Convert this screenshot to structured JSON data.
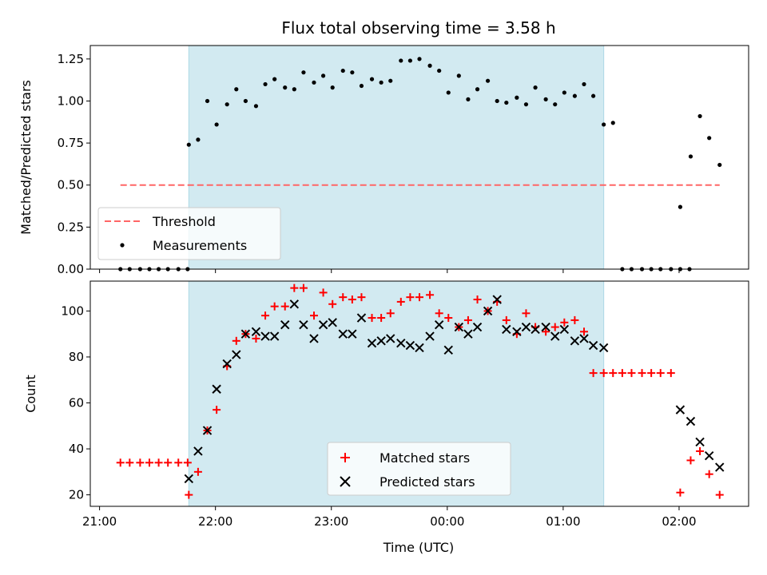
{
  "chart_data": {
    "type": "scatter",
    "title": "Flux total observing time = 3.58 h",
    "xlabel": "Time (UTC)",
    "x_tick_labels": [
      "21:00",
      "22:00",
      "23:00",
      "00:00",
      "01:00",
      "02:00"
    ],
    "x_tick_hours": [
      21.0,
      22.0,
      23.0,
      24.0,
      25.0,
      26.0
    ],
    "xlim_hours": [
      20.92,
      26.6
    ],
    "observing_window_hours": [
      21.77,
      25.35
    ],
    "observing_window_color": "#add8e6",
    "top_panel": {
      "ylabel": "Matched/Predicted stars",
      "ylim": [
        0.0,
        1.33
      ],
      "y_ticks": [
        "0.00",
        "0.25",
        "0.50",
        "0.75",
        "1.00",
        "1.25"
      ],
      "legend_position": "lower-left",
      "threshold": {
        "name": "Threshold",
        "value": 0.5,
        "x_range_hours": [
          21.18,
          26.35
        ],
        "color": "#ff6666"
      },
      "measurements": {
        "name": "Measurements",
        "color": "#000000",
        "points": [
          [
            21.18,
            0.0
          ],
          [
            21.26,
            0.0
          ],
          [
            21.35,
            0.0
          ],
          [
            21.43,
            0.0
          ],
          [
            21.51,
            0.0
          ],
          [
            21.59,
            0.0
          ],
          [
            21.68,
            0.0
          ],
          [
            21.76,
            0.0
          ],
          [
            21.77,
            0.74
          ],
          [
            21.85,
            0.77
          ],
          [
            21.93,
            1.0
          ],
          [
            22.01,
            0.86
          ],
          [
            22.1,
            0.98
          ],
          [
            22.18,
            1.07
          ],
          [
            22.26,
            1.0
          ],
          [
            22.35,
            0.97
          ],
          [
            22.43,
            1.1
          ],
          [
            22.51,
            1.13
          ],
          [
            22.6,
            1.08
          ],
          [
            22.68,
            1.07
          ],
          [
            22.76,
            1.17
          ],
          [
            22.85,
            1.11
          ],
          [
            22.93,
            1.15
          ],
          [
            23.01,
            1.08
          ],
          [
            23.1,
            1.18
          ],
          [
            23.18,
            1.17
          ],
          [
            23.26,
            1.09
          ],
          [
            23.35,
            1.13
          ],
          [
            23.43,
            1.11
          ],
          [
            23.51,
            1.12
          ],
          [
            23.6,
            1.24
          ],
          [
            23.68,
            1.24
          ],
          [
            23.76,
            1.25
          ],
          [
            23.85,
            1.21
          ],
          [
            23.93,
            1.18
          ],
          [
            24.01,
            1.05
          ],
          [
            24.1,
            1.15
          ],
          [
            24.18,
            1.01
          ],
          [
            24.26,
            1.07
          ],
          [
            24.35,
            1.12
          ],
          [
            24.43,
            1.0
          ],
          [
            24.51,
            0.99
          ],
          [
            24.6,
            1.02
          ],
          [
            24.68,
            0.98
          ],
          [
            24.76,
            1.08
          ],
          [
            24.85,
            1.01
          ],
          [
            24.93,
            0.98
          ],
          [
            25.01,
            1.05
          ],
          [
            25.1,
            1.03
          ],
          [
            25.18,
            1.1
          ],
          [
            25.26,
            1.03
          ],
          [
            25.35,
            0.86
          ],
          [
            25.43,
            0.87
          ],
          [
            25.51,
            0.0
          ],
          [
            25.59,
            0.0
          ],
          [
            25.68,
            0.0
          ],
          [
            25.76,
            0.0
          ],
          [
            25.84,
            0.0
          ],
          [
            25.93,
            0.0
          ],
          [
            26.01,
            0.0
          ],
          [
            26.09,
            0.0
          ],
          [
            26.01,
            0.37
          ],
          [
            26.1,
            0.67
          ],
          [
            26.18,
            0.91
          ],
          [
            26.26,
            0.78
          ],
          [
            26.35,
            0.62
          ]
        ]
      }
    },
    "bottom_panel": {
      "ylabel": "Count",
      "ylim": [
        15.0,
        113.0
      ],
      "y_ticks": [
        "20",
        "40",
        "60",
        "80",
        "100"
      ],
      "legend_position": "lower-center",
      "series": [
        {
          "name": "Matched stars",
          "marker": "plus",
          "color": "#ff0000",
          "points": [
            [
              21.18,
              34
            ],
            [
              21.26,
              34
            ],
            [
              21.35,
              34
            ],
            [
              21.43,
              34
            ],
            [
              21.51,
              34
            ],
            [
              21.59,
              34
            ],
            [
              21.68,
              34
            ],
            [
              21.76,
              34
            ],
            [
              21.77,
              20
            ],
            [
              21.85,
              30
            ],
            [
              21.93,
              48
            ],
            [
              22.01,
              57
            ],
            [
              22.1,
              76
            ],
            [
              22.18,
              87
            ],
            [
              22.26,
              90
            ],
            [
              22.35,
              88
            ],
            [
              22.43,
              98
            ],
            [
              22.51,
              102
            ],
            [
              22.6,
              102
            ],
            [
              22.68,
              110
            ],
            [
              22.76,
              110
            ],
            [
              22.85,
              98
            ],
            [
              22.93,
              108
            ],
            [
              23.01,
              103
            ],
            [
              23.1,
              106
            ],
            [
              23.18,
              105
            ],
            [
              23.26,
              106
            ],
            [
              23.35,
              97
            ],
            [
              23.43,
              97
            ],
            [
              23.51,
              99
            ],
            [
              23.6,
              104
            ],
            [
              23.68,
              106
            ],
            [
              23.76,
              106
            ],
            [
              23.85,
              107
            ],
            [
              23.93,
              99
            ],
            [
              24.01,
              97
            ],
            [
              24.1,
              93
            ],
            [
              24.18,
              96
            ],
            [
              24.26,
              105
            ],
            [
              24.35,
              100
            ],
            [
              24.43,
              104
            ],
            [
              24.51,
              96
            ],
            [
              24.6,
              90
            ],
            [
              24.68,
              99
            ],
            [
              24.76,
              93
            ],
            [
              24.85,
              91
            ],
            [
              24.93,
              93
            ],
            [
              25.01,
              95
            ],
            [
              25.1,
              96
            ],
            [
              25.18,
              91
            ],
            [
              25.26,
              73
            ],
            [
              25.35,
              73
            ],
            [
              25.43,
              73
            ],
            [
              25.51,
              73
            ],
            [
              25.59,
              73
            ],
            [
              25.68,
              73
            ],
            [
              25.76,
              73
            ],
            [
              25.84,
              73
            ],
            [
              25.93,
              73
            ],
            [
              26.01,
              21
            ],
            [
              26.1,
              35
            ],
            [
              26.18,
              39
            ],
            [
              26.26,
              29
            ],
            [
              26.35,
              20
            ]
          ]
        },
        {
          "name": "Predicted stars",
          "marker": "x",
          "color": "#000000",
          "points": [
            [
              21.77,
              27
            ],
            [
              21.85,
              39
            ],
            [
              21.93,
              48
            ],
            [
              22.01,
              66
            ],
            [
              22.1,
              77
            ],
            [
              22.18,
              81
            ],
            [
              22.26,
              90
            ],
            [
              22.35,
              91
            ],
            [
              22.43,
              89
            ],
            [
              22.51,
              89
            ],
            [
              22.6,
              94
            ],
            [
              22.68,
              103
            ],
            [
              22.76,
              94
            ],
            [
              22.85,
              88
            ],
            [
              22.93,
              94
            ],
            [
              23.01,
              95
            ],
            [
              23.1,
              90
            ],
            [
              23.18,
              90
            ],
            [
              23.26,
              97
            ],
            [
              23.35,
              86
            ],
            [
              23.43,
              87
            ],
            [
              23.51,
              88
            ],
            [
              23.6,
              86
            ],
            [
              23.68,
              85
            ],
            [
              23.76,
              84
            ],
            [
              23.85,
              89
            ],
            [
              23.93,
              94
            ],
            [
              24.01,
              83
            ],
            [
              24.1,
              93
            ],
            [
              24.18,
              90
            ],
            [
              24.26,
              93
            ],
            [
              24.35,
              100
            ],
            [
              24.43,
              105
            ],
            [
              24.51,
              92
            ],
            [
              24.6,
              91
            ],
            [
              24.68,
              93
            ],
            [
              24.76,
              92
            ],
            [
              24.85,
              93
            ],
            [
              24.93,
              89
            ],
            [
              25.01,
              92
            ],
            [
              25.1,
              87
            ],
            [
              25.18,
              88
            ],
            [
              25.26,
              85
            ],
            [
              25.35,
              84
            ],
            [
              26.01,
              57
            ],
            [
              26.1,
              52
            ],
            [
              26.18,
              43
            ],
            [
              26.26,
              37
            ],
            [
              26.35,
              32
            ]
          ]
        }
      ]
    }
  }
}
